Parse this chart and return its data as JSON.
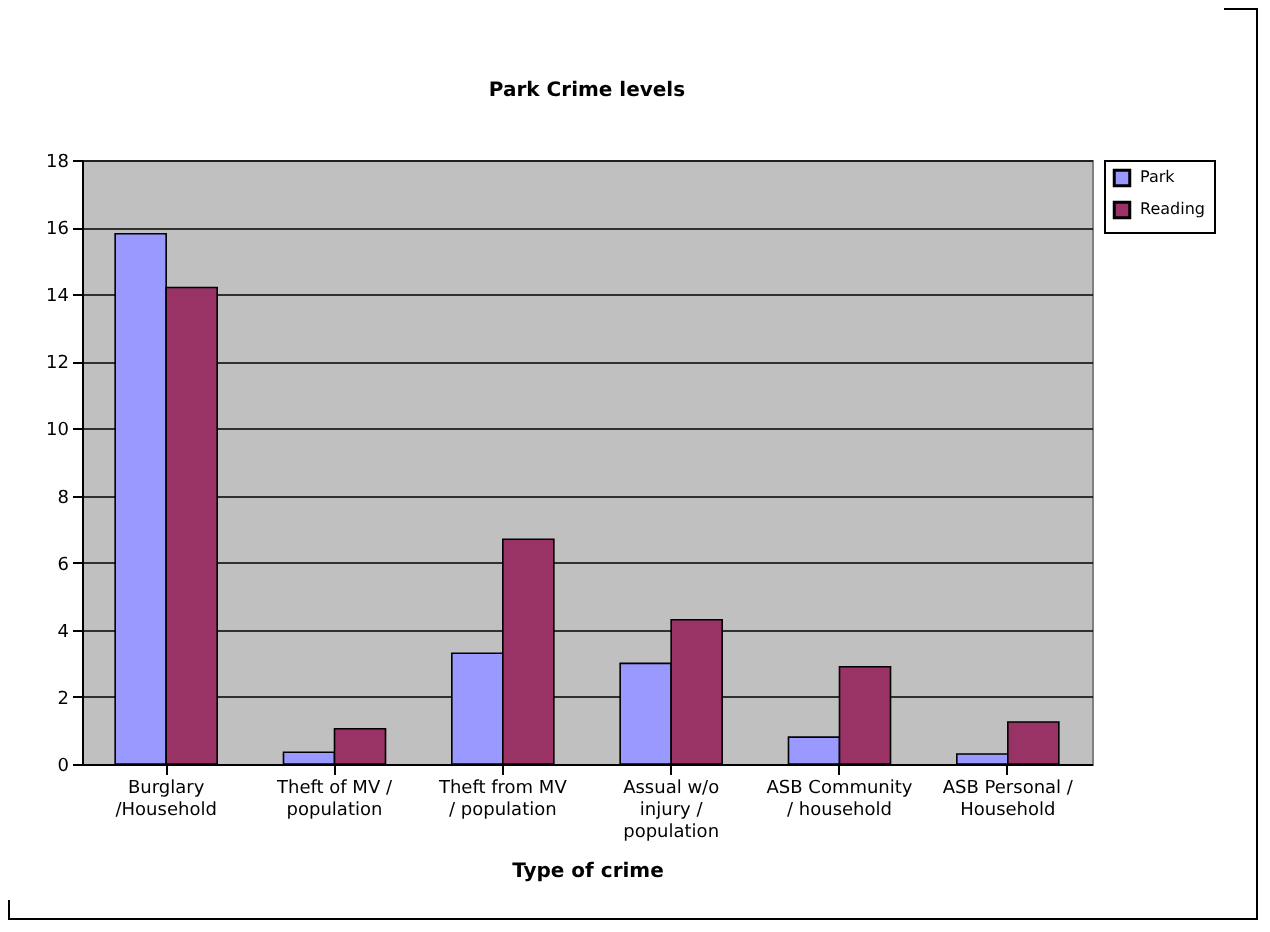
{
  "chart_data": {
    "type": "bar",
    "title": "Park Crime levels",
    "xlabel": "Type of crime",
    "categories": [
      "Burglary /Household",
      "Theft of MV / population",
      "Theft from MV / population",
      "Assual w/o injury / population",
      "ASB Community / household",
      "ASB Personal / Household"
    ],
    "series": [
      {
        "name": "Park",
        "color": "#9999ff",
        "values": [
          15.8,
          0.35,
          3.3,
          3.0,
          0.8,
          0.3
        ]
      },
      {
        "name": "Reading",
        "color": "#993366",
        "values": [
          14.2,
          1.05,
          6.7,
          4.3,
          2.9,
          1.25
        ]
      }
    ],
    "ylim": [
      0,
      18
    ],
    "yticks": [
      0,
      2,
      4,
      6,
      8,
      10,
      12,
      14,
      16,
      18
    ],
    "grid": "y",
    "legend": "right"
  }
}
